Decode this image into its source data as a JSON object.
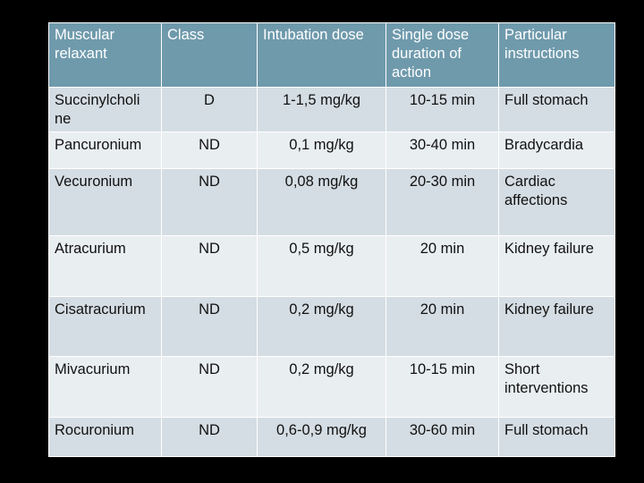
{
  "table": {
    "columns": [
      "Muscular relaxant",
      "Class",
      "Intubation dose",
      "Single dose duration of action",
      "Particular instructions"
    ],
    "rows": [
      {
        "relaxant": "Succinylcholi ne",
        "class": "D",
        "dose": "1-1,5 mg/kg",
        "duration": "10-15 min",
        "instructions": "Full stomach"
      },
      {
        "relaxant": "Pancuronium",
        "class": "ND",
        "dose": "0,1 mg/kg",
        "duration": "30-40 min",
        "instructions": "Bradycardia"
      },
      {
        "relaxant": "Vecuronium",
        "class": "ND",
        "dose": "0,08 mg/kg",
        "duration": "20-30 min",
        "instructions": "Cardiac affections"
      },
      {
        "relaxant": "Atracurium",
        "class": "ND",
        "dose": "0,5 mg/kg",
        "duration": "20 min",
        "instructions": "Kidney failure"
      },
      {
        "relaxant": "Cisatracurium",
        "class": "ND",
        "dose": "0,2 mg/kg",
        "duration": "20 min",
        "instructions": "Kidney failure"
      },
      {
        "relaxant": "Mivacurium",
        "class": "ND",
        "dose": "0,2 mg/kg",
        "duration": "10-15 min",
        "instructions": "Short interventions"
      },
      {
        "relaxant": "Rocuronium",
        "class": "ND",
        "dose": "0,6-0,9 mg/kg",
        "duration": "30-60 min",
        "instructions": "Full stomach"
      }
    ]
  },
  "colors": {
    "background": "#000000",
    "header": "#6f9aac",
    "row_dark": "#d4dde3",
    "row_light": "#e9eef1",
    "border": "#ffffff"
  }
}
